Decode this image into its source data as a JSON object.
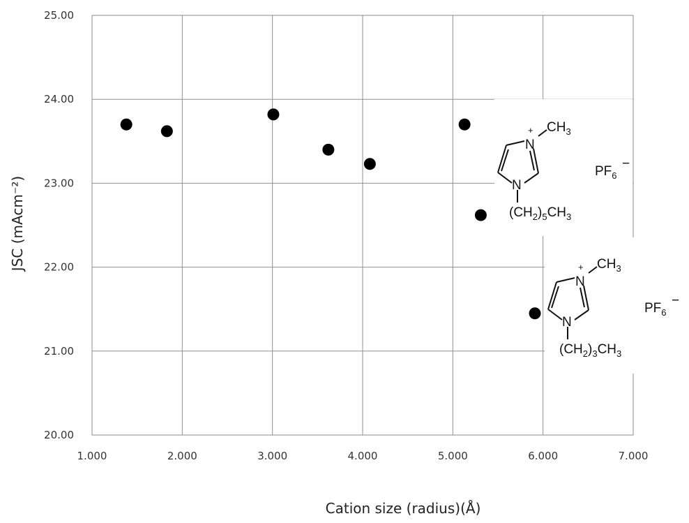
{
  "chart_data": {
    "type": "scatter",
    "xlabel": "Cation size (radius)(Å)",
    "ylabel": "JSC (mAcm⁻²)",
    "xlim": [
      1.0,
      7.0
    ],
    "ylim": [
      20.0,
      25.0
    ],
    "x_ticks": [
      "1.000",
      "2.000",
      "3.000",
      "4.000",
      "5.000",
      "6.000",
      "7.000"
    ],
    "y_ticks": [
      "20.00",
      "21.00",
      "22.00",
      "23.00",
      "24.00",
      "25.00"
    ],
    "grid": true,
    "points": [
      {
        "x": 1.38,
        "y": 23.7
      },
      {
        "x": 1.83,
        "y": 23.62
      },
      {
        "x": 3.01,
        "y": 23.82
      },
      {
        "x": 3.62,
        "y": 23.4
      },
      {
        "x": 4.08,
        "y": 23.23
      },
      {
        "x": 5.13,
        "y": 23.7
      },
      {
        "x": 5.31,
        "y": 22.62
      },
      {
        "x": 5.91,
        "y": 21.45
      }
    ],
    "annotations": [
      {
        "methyl": "CH3",
        "n_plus": "N",
        "plus": "+",
        "n": "N",
        "chain": "(CH2)5CH3",
        "anion": "PF6",
        "anion_charge": "−"
      },
      {
        "methyl": "CH3",
        "n_plus": "N",
        "plus": "+",
        "n": "N",
        "chain": "(CH2)3CH3",
        "anion": "PF6",
        "anion_charge": "−"
      }
    ]
  }
}
